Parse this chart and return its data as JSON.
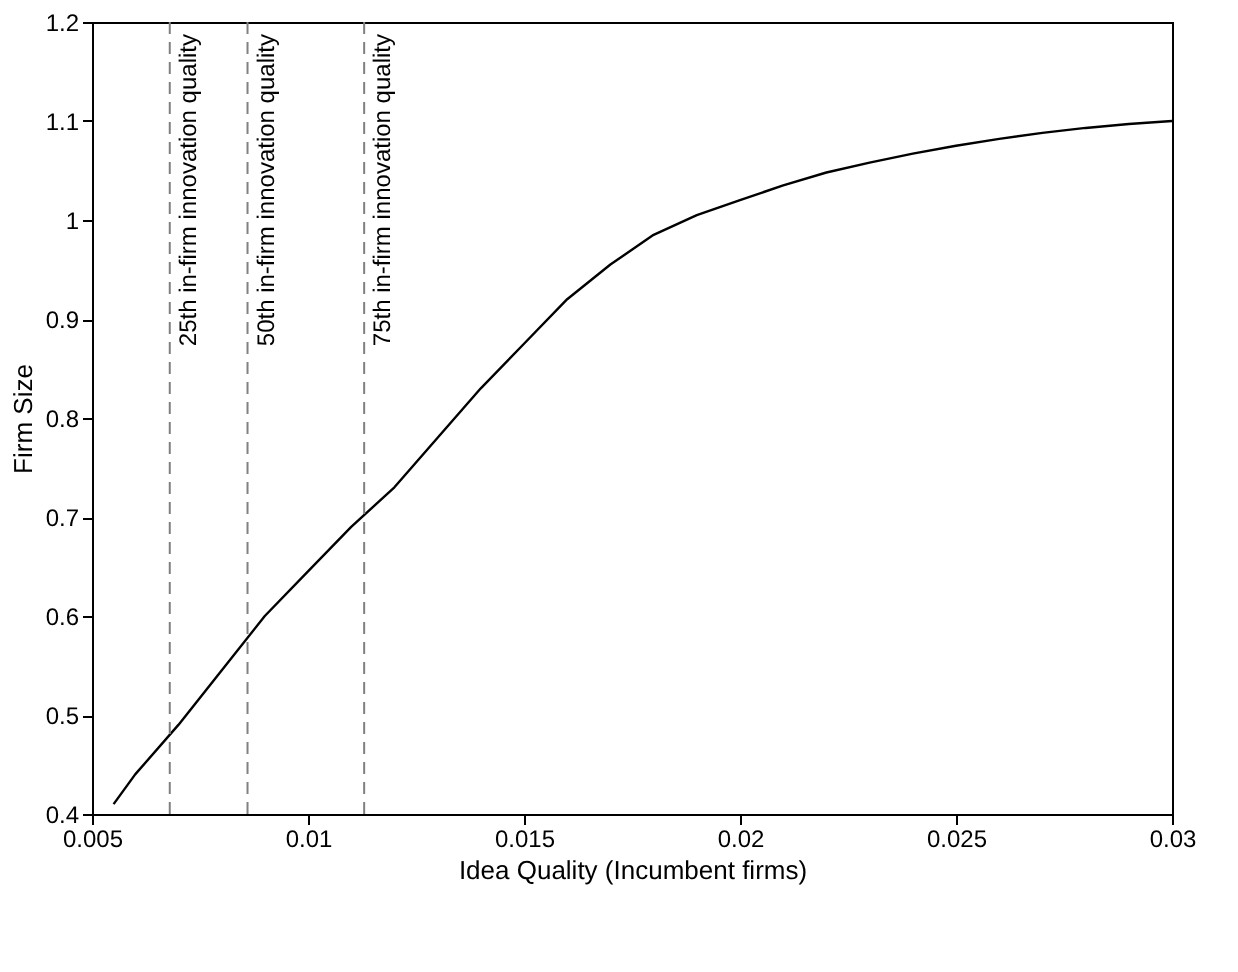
{
  "chart_data": {
    "type": "line",
    "xlabel": "Idea Quality (Incumbent firms)",
    "ylabel": "Firm Size",
    "x": [
      0.0055,
      0.006,
      0.007,
      0.008,
      0.009,
      0.01,
      0.011,
      0.012,
      0.013,
      0.014,
      0.015,
      0.016,
      0.017,
      0.018,
      0.019,
      0.02,
      0.021,
      0.022,
      0.023,
      0.024,
      0.025,
      0.026,
      0.027,
      0.028,
      0.029,
      0.03
    ],
    "series": [
      {
        "color": "#000000",
        "values": [
          0.41,
          0.44,
          0.49,
          0.545,
          0.6,
          0.645,
          0.69,
          0.73,
          0.78,
          0.83,
          0.875,
          0.92,
          0.955,
          0.985,
          1.005,
          1.02,
          1.035,
          1.048,
          1.058,
          1.067,
          1.075,
          1.082,
          1.088,
          1.093,
          1.097,
          1.1
        ]
      }
    ],
    "xlim": [
      0.005,
      0.03
    ],
    "xticks": [
      0.005,
      0.01,
      0.015,
      0.02,
      0.025,
      0.03
    ],
    "ylim": [
      0.4,
      1.2
    ],
    "yticks": [
      0.4,
      0.5,
      0.6,
      0.7,
      0.8,
      0.9,
      1,
      1.1,
      1.2
    ],
    "ref_lines": [
      {
        "axis": "x",
        "value": 0.0068,
        "label": "25th in-firm innovation quality",
        "color": "#808080",
        "line_style": "dashed"
      },
      {
        "axis": "x",
        "value": 0.0086,
        "label": "50th in-firm innovation quality",
        "color": "#808080",
        "line_style": "dashed"
      },
      {
        "axis": "x",
        "value": 0.0113,
        "label": "75th in-firm innovation quality",
        "color": "#808080",
        "line_style": "dashed"
      }
    ],
    "grid": false,
    "line_style": "solid",
    "marker": "none"
  }
}
